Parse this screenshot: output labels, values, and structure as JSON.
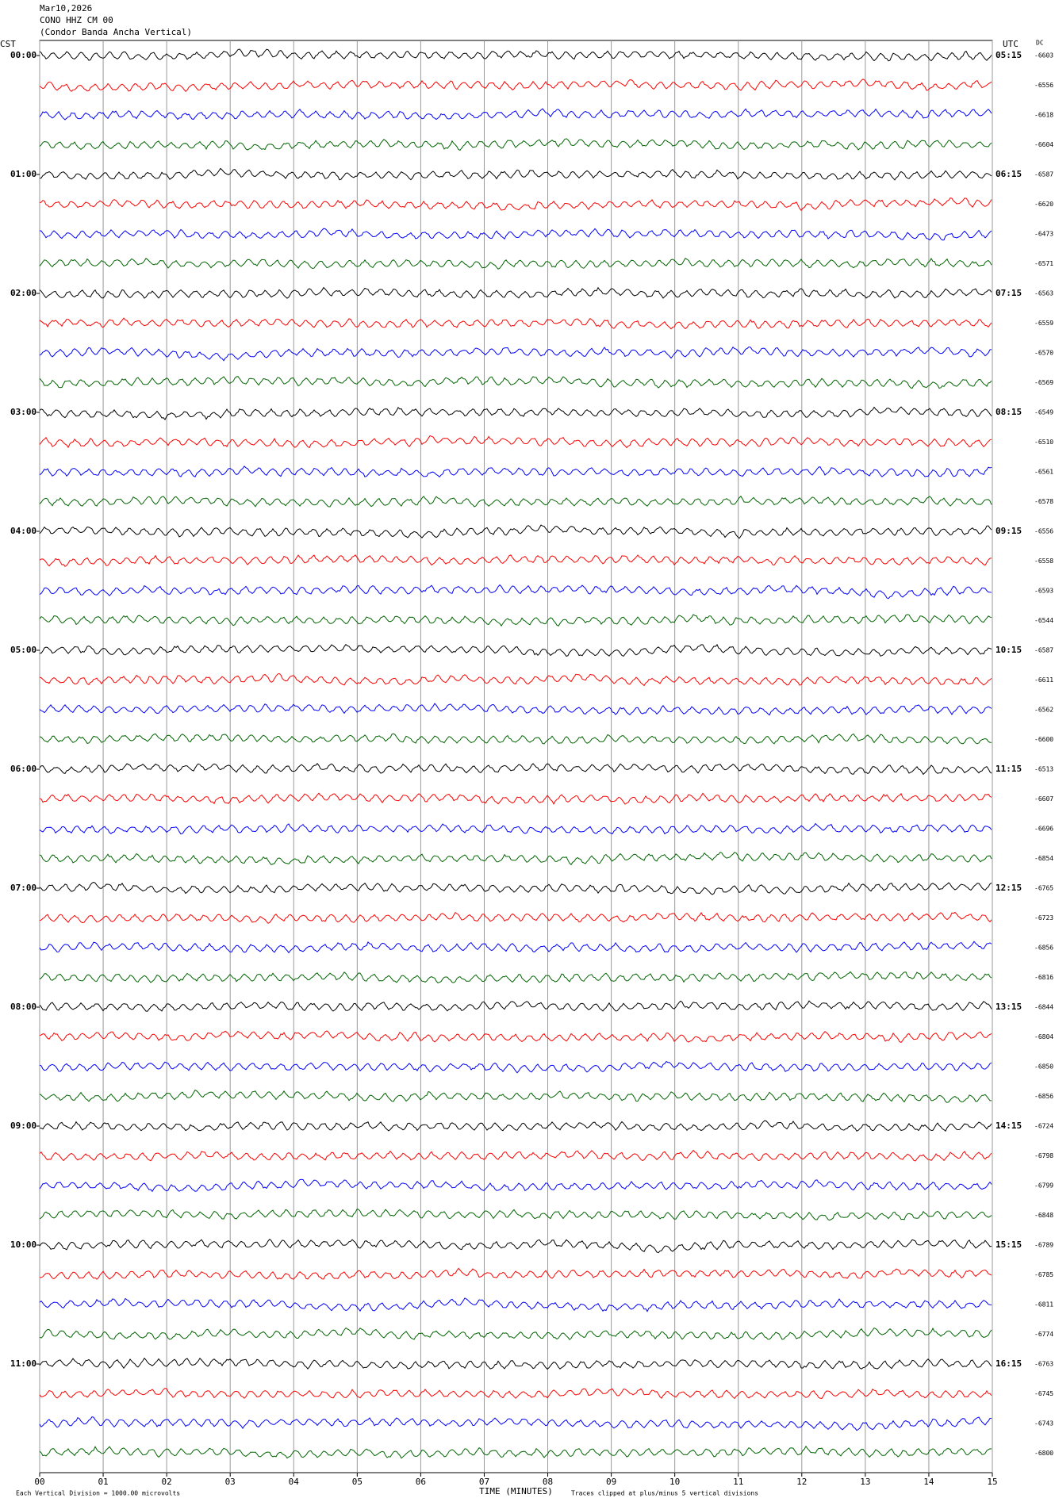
{
  "chart_data": {
    "type": "seismogram",
    "header": [
      "Mar10,2026",
      "CONO HHZ CM 00",
      "(Condor Banda Ancha Vertical)"
    ],
    "left_axis_title": "CST",
    "right_axis_title": "UTC",
    "dc_title": "DC",
    "left_labels": [
      "00:00",
      null,
      null,
      null,
      "01:00",
      null,
      null,
      null,
      "02:00",
      null,
      null,
      null,
      "03:00",
      null,
      null,
      null,
      "04:00",
      null,
      null,
      null,
      "05:00",
      null,
      null,
      null,
      "06:00",
      null,
      null,
      null,
      "07:00",
      null,
      null,
      null,
      "08:00",
      null,
      null,
      null,
      "09:00",
      null,
      null,
      null,
      "10:00",
      null,
      null,
      null,
      "11:00",
      null,
      null,
      null
    ],
    "right_labels": [
      "05:15",
      null,
      null,
      null,
      "06:15",
      null,
      null,
      null,
      "07:15",
      null,
      null,
      null,
      "08:15",
      null,
      null,
      null,
      "09:15",
      null,
      null,
      null,
      "10:15",
      null,
      null,
      null,
      "11:15",
      null,
      null,
      null,
      "12:15",
      null,
      null,
      null,
      "13:15",
      null,
      null,
      null,
      "14:15",
      null,
      null,
      null,
      "15:15",
      null,
      null,
      null,
      "16:15",
      null,
      null,
      null
    ],
    "dc_values": [
      -6603,
      -6556,
      -6618,
      -6604,
      -6587,
      -6620,
      -6473,
      -6571,
      -6563,
      -6559,
      -6570,
      -6569,
      -6549,
      -6510,
      -6561,
      -6578,
      -6556,
      -6558,
      -6593,
      -6544,
      -6587,
      -6611,
      -6562,
      -6600,
      -6513,
      -6607,
      -6696,
      -6854,
      -6765,
      -6723,
      -6856,
      -6816,
      -6844,
      -6804,
      -6850,
      -6856,
      -6724,
      -6798,
      -6799,
      -6848,
      -6789,
      -6785,
      -6811,
      -6774,
      -6763,
      -6745,
      -6743,
      -6800
    ],
    "colors": [
      "#000000",
      "#ff0000",
      "#0000ff",
      "#006400"
    ],
    "xlim": [
      0,
      15
    ],
    "xticks": [
      {
        "value": 0,
        "label": "00"
      },
      {
        "value": 1,
        "label": "01"
      },
      {
        "value": 2,
        "label": "02"
      },
      {
        "value": 3,
        "label": "03"
      },
      {
        "value": 4,
        "label": "04"
      },
      {
        "value": 5,
        "label": "05"
      },
      {
        "value": 6,
        "label": "06"
      },
      {
        "value": 7,
        "label": "07"
      },
      {
        "value": 8,
        "label": "08"
      },
      {
        "value": 9,
        "label": "09"
      },
      {
        "value": 10,
        "label": "10"
      },
      {
        "value": 11,
        "label": "11"
      },
      {
        "value": 12,
        "label": "12"
      },
      {
        "value": 13,
        "label": "13"
      },
      {
        "value": 14,
        "label": "14"
      },
      {
        "value": 15,
        "label": "15"
      }
    ],
    "xlabel": "TIME (MINUTES)",
    "footer_left": "Each Vertical Division = 1000.00 microvolts",
    "footer_right": "Traces clipped at plus/minus 5 vertical divisions",
    "grid": true
  }
}
